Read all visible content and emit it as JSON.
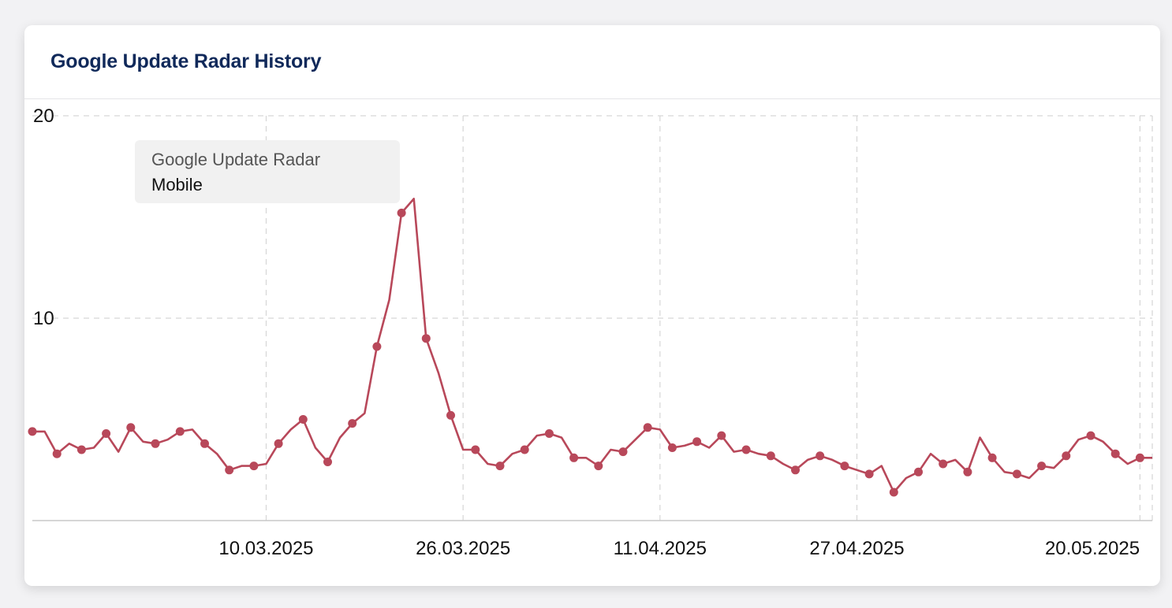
{
  "card": {
    "title": "Google Update Radar History"
  },
  "legend": {
    "title": "Google Update Radar",
    "subtitle": "Mobile"
  },
  "colors": {
    "series": "#b8485a",
    "title": "#10295a",
    "grid": "#d6d6d6"
  },
  "chart_data": {
    "type": "line",
    "title": "",
    "xlabel": "",
    "ylabel": "",
    "ylim": [
      0,
      20
    ],
    "yticks": [
      10,
      20
    ],
    "grid": true,
    "legend_placement": "top-left",
    "x_start": "2025-02-19",
    "x_end": "2025-05-21",
    "xticks": [
      {
        "date": "2025-03-10",
        "label": "10.03.2025"
      },
      {
        "date": "2025-03-26",
        "label": "26.03.2025"
      },
      {
        "date": "2025-04-11",
        "label": "11.04.2025"
      },
      {
        "date": "2025-04-27",
        "label": "27.04.2025"
      },
      {
        "date": "2025-05-20",
        "label": "20.05.2025"
      }
    ],
    "series": [
      {
        "name": "",
        "x": [
          "2025-02-19",
          "2025-02-20",
          "2025-02-21",
          "2025-02-22",
          "2025-02-23",
          "2025-02-24",
          "2025-02-25",
          "2025-02-26",
          "2025-02-27",
          "2025-02-28",
          "2025-03-01",
          "2025-03-02",
          "2025-03-03",
          "2025-03-04",
          "2025-03-05",
          "2025-03-06",
          "2025-03-07",
          "2025-03-08",
          "2025-03-09",
          "2025-03-10",
          "2025-03-11",
          "2025-03-12",
          "2025-03-13",
          "2025-03-14",
          "2025-03-15",
          "2025-03-16",
          "2025-03-17",
          "2025-03-18",
          "2025-03-19",
          "2025-03-20",
          "2025-03-21",
          "2025-03-22",
          "2025-03-23",
          "2025-03-24",
          "2025-03-25",
          "2025-03-26",
          "2025-03-27",
          "2025-03-28",
          "2025-03-29",
          "2025-03-30",
          "2025-03-31",
          "2025-04-01",
          "2025-04-02",
          "2025-04-03",
          "2025-04-04",
          "2025-04-05",
          "2025-04-06",
          "2025-04-07",
          "2025-04-08",
          "2025-04-09",
          "2025-04-10",
          "2025-04-11",
          "2025-04-12",
          "2025-04-13",
          "2025-04-14",
          "2025-04-15",
          "2025-04-16",
          "2025-04-17",
          "2025-04-18",
          "2025-04-19",
          "2025-04-20",
          "2025-04-21",
          "2025-04-22",
          "2025-04-23",
          "2025-04-24",
          "2025-04-25",
          "2025-04-26",
          "2025-04-27",
          "2025-04-28",
          "2025-04-29",
          "2025-04-30",
          "2025-05-01",
          "2025-05-02",
          "2025-05-03",
          "2025-05-04",
          "2025-05-05",
          "2025-05-06",
          "2025-05-07",
          "2025-05-08",
          "2025-05-09",
          "2025-05-10",
          "2025-05-11",
          "2025-05-12",
          "2025-05-13",
          "2025-05-14",
          "2025-05-15",
          "2025-05-16",
          "2025-05-17",
          "2025-05-18",
          "2025-05-19",
          "2025-05-20",
          "2025-05-21"
        ],
        "values": [
          4.4,
          4.4,
          3.3,
          3.8,
          3.5,
          3.6,
          4.3,
          3.4,
          4.6,
          3.9,
          3.8,
          4.0,
          4.4,
          4.5,
          3.8,
          3.3,
          2.5,
          2.7,
          2.7,
          2.8,
          3.8,
          4.5,
          5.0,
          3.6,
          2.9,
          4.1,
          4.8,
          5.3,
          8.6,
          10.9,
          15.2,
          15.9,
          9.0,
          7.3,
          5.2,
          3.5,
          3.5,
          2.8,
          2.7,
          3.3,
          3.5,
          4.2,
          4.3,
          4.1,
          3.1,
          3.1,
          2.7,
          3.5,
          3.4,
          4.0,
          4.6,
          4.5,
          3.6,
          3.7,
          3.9,
          3.6,
          4.2,
          3.4,
          3.5,
          3.3,
          3.2,
          2.8,
          2.5,
          3.0,
          3.2,
          3.0,
          2.7,
          2.5,
          2.3,
          2.7,
          1.4,
          2.1,
          2.4,
          3.3,
          2.8,
          3.0,
          2.4,
          4.1,
          3.1,
          2.4,
          2.3,
          2.1,
          2.7,
          2.6,
          3.2,
          4.0,
          4.2,
          3.9,
          3.3,
          2.8,
          3.1,
          3.1
        ]
      }
    ]
  }
}
